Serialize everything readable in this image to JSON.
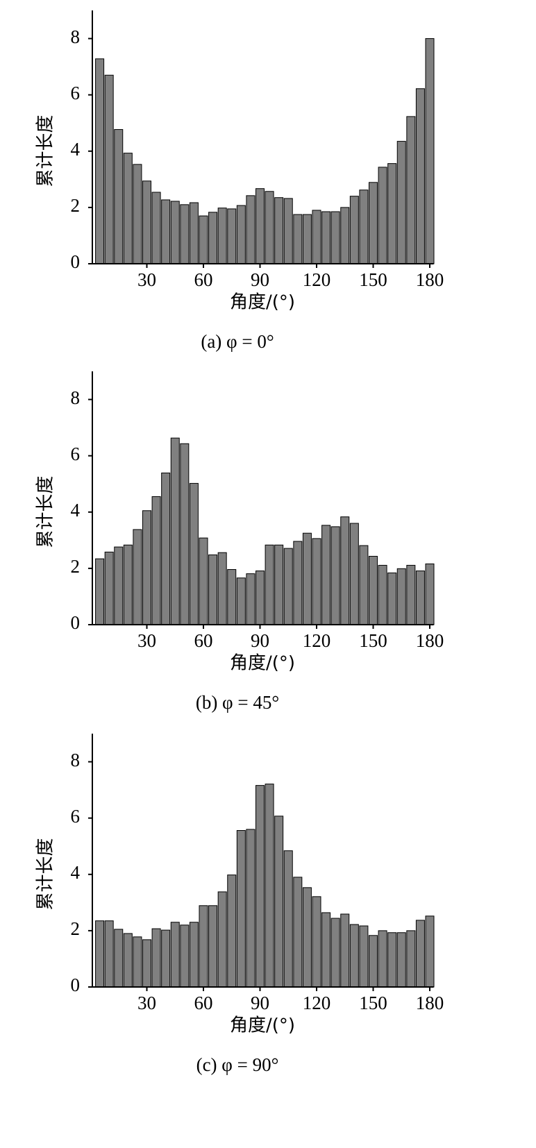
{
  "chart_data": [
    {
      "type": "bar",
      "caption": "(a) φ = 0°",
      "x_label": "角度/(°)",
      "y_label": "累计长度",
      "color": "#808080",
      "x": [
        5,
        10,
        15,
        20,
        25,
        30,
        35,
        40,
        45,
        50,
        55,
        60,
        65,
        70,
        75,
        80,
        85,
        90,
        95,
        100,
        105,
        110,
        115,
        120,
        125,
        130,
        135,
        140,
        145,
        150,
        155,
        160,
        165,
        170,
        175,
        180
      ],
      "values": [
        7.28,
        6.7,
        4.77,
        3.93,
        3.53,
        2.94,
        2.54,
        2.27,
        2.22,
        2.1,
        2.17,
        1.7,
        1.83,
        1.98,
        1.95,
        2.07,
        2.42,
        2.67,
        2.57,
        2.35,
        2.32,
        1.75,
        1.75,
        1.9,
        1.85,
        1.85,
        2.0,
        2.4,
        2.62,
        2.89,
        3.43,
        3.56,
        4.35,
        5.23,
        6.22,
        8.0
      ],
      "xlim": [
        0,
        182
      ],
      "xticks": [
        30,
        60,
        90,
        120,
        150,
        180
      ],
      "ylim": [
        0,
        9
      ],
      "yticks": [
        0,
        2,
        4,
        6,
        8
      ]
    },
    {
      "type": "bar",
      "caption": "(b) φ = 45°",
      "x_label": "角度/(°)",
      "y_label": "累计长度",
      "color": "#808080",
      "x": [
        5,
        10,
        15,
        20,
        25,
        30,
        35,
        40,
        45,
        50,
        55,
        60,
        65,
        70,
        75,
        80,
        85,
        90,
        95,
        100,
        105,
        110,
        115,
        120,
        125,
        130,
        135,
        140,
        145,
        150,
        155,
        160,
        165,
        170,
        175,
        180
      ],
      "values": [
        2.34,
        2.58,
        2.76,
        2.83,
        3.38,
        4.05,
        4.55,
        5.39,
        6.63,
        6.43,
        5.02,
        3.08,
        2.48,
        2.56,
        1.96,
        1.66,
        1.81,
        1.91,
        2.83,
        2.83,
        2.71,
        2.96,
        3.25,
        3.06,
        3.53,
        3.48,
        3.83,
        3.6,
        2.81,
        2.43,
        2.11,
        1.84,
        1.99,
        2.11,
        1.91,
        2.16
      ],
      "xlim": [
        0,
        182
      ],
      "xticks": [
        30,
        60,
        90,
        120,
        150,
        180
      ],
      "ylim": [
        0,
        9
      ],
      "yticks": [
        0,
        2,
        4,
        6,
        8
      ]
    },
    {
      "type": "bar",
      "caption": "(c) φ = 90°",
      "x_label": "角度/(°)",
      "y_label": "累计长度",
      "color": "#808080",
      "x": [
        5,
        10,
        15,
        20,
        25,
        30,
        35,
        40,
        45,
        50,
        55,
        60,
        65,
        70,
        75,
        80,
        85,
        90,
        95,
        100,
        105,
        110,
        115,
        120,
        125,
        130,
        135,
        140,
        145,
        150,
        155,
        160,
        165,
        170,
        175,
        180
      ],
      "values": [
        2.35,
        2.35,
        2.05,
        1.9,
        1.78,
        1.68,
        2.07,
        2.02,
        2.3,
        2.2,
        2.3,
        2.89,
        2.89,
        3.38,
        3.98,
        5.56,
        5.6,
        7.16,
        7.21,
        6.07,
        4.84,
        3.9,
        3.53,
        3.21,
        2.64,
        2.44,
        2.59,
        2.22,
        2.17,
        1.83,
        2.0,
        1.93,
        1.93,
        2.0,
        2.37,
        2.52
      ],
      "xlim": [
        0,
        182
      ],
      "xticks": [
        30,
        60,
        90,
        120,
        150,
        180
      ],
      "ylim": [
        0,
        9
      ],
      "yticks": [
        0,
        2,
        4,
        6,
        8
      ]
    }
  ]
}
